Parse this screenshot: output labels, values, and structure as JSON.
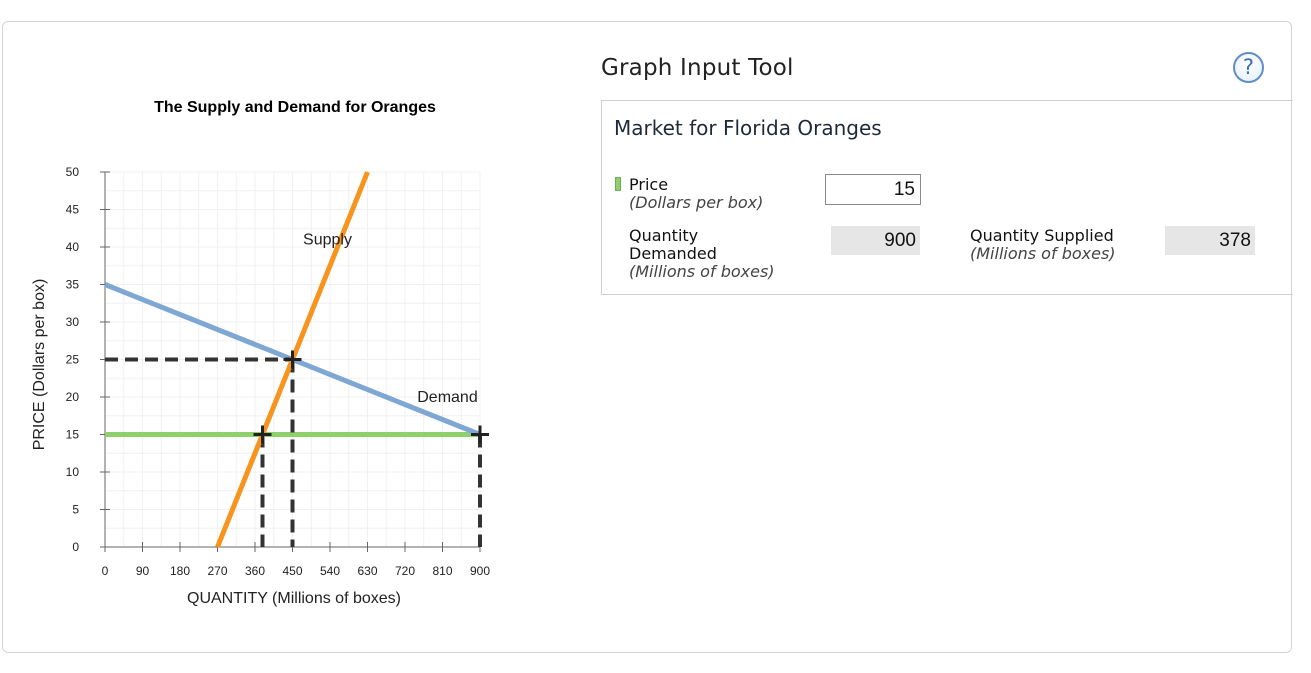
{
  "chart_data": {
    "type": "line",
    "title": "The Supply and Demand for Oranges",
    "xlabel": "QUANTITY (Millions of boxes)",
    "ylabel": "PRICE (Dollars per box)",
    "xlim": [
      0,
      900
    ],
    "ylim": [
      0,
      50
    ],
    "x_ticks": [
      0,
      90,
      180,
      270,
      360,
      450,
      540,
      630,
      720,
      810,
      900
    ],
    "y_ticks": [
      0,
      5,
      10,
      15,
      20,
      25,
      30,
      35,
      40,
      45,
      50
    ],
    "grid": true,
    "series": [
      {
        "name": "Supply",
        "color": "#f7941d",
        "x": [
          270,
          630
        ],
        "y": [
          0,
          50
        ]
      },
      {
        "name": "Demand",
        "color": "#7ea7d3",
        "x": [
          0,
          900
        ],
        "y": [
          35,
          15
        ]
      },
      {
        "name": "",
        "color": "#8ed16c",
        "x": [
          0,
          900
        ],
        "y": [
          15,
          15
        ]
      }
    ],
    "annotations": [
      {
        "text": "Supply",
        "x": 534,
        "y": 41
      },
      {
        "text": "Demand",
        "x": 822,
        "y": 20
      }
    ],
    "markers": [
      {
        "x": 450,
        "y": 25
      },
      {
        "x": 378,
        "y": 15
      },
      {
        "x": 900,
        "y": 15
      }
    ]
  },
  "tool": {
    "title": "Graph Input Tool",
    "help_icon": "question-mark-icon",
    "panel_title": "Market for Florida Oranges",
    "price_label": "Price",
    "price_unit": "(Dollars per box)",
    "price_value": "15",
    "qd_label_line1": "Quantity",
    "qd_label_line2": "Demanded",
    "qd_unit": "(Millions of boxes)",
    "qd_value": "900",
    "qs_label": "Quantity Supplied",
    "qs_unit": "(Millions of boxes)",
    "qs_value": "378",
    "price_color": "#8ed16c"
  }
}
